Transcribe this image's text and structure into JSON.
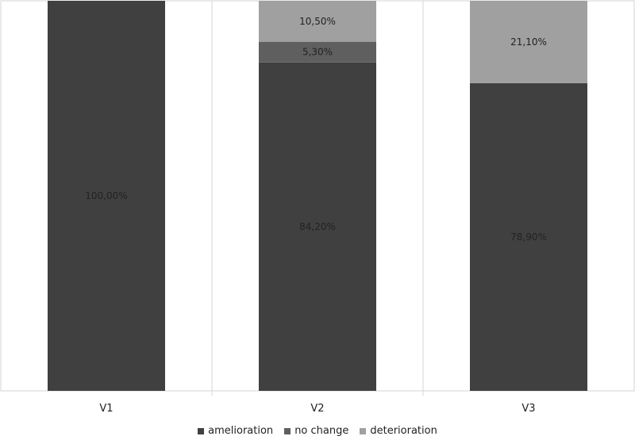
{
  "chart_data": {
    "type": "bar",
    "stacked": true,
    "title": "",
    "xlabel": "",
    "ylabel": "",
    "ylim": [
      0,
      100
    ],
    "grid": false,
    "legend_position": "bottom",
    "categories": [
      "V1",
      "V2",
      "V3"
    ],
    "series": [
      {
        "name": "amelioration",
        "color": "#404040",
        "values": [
          100.0,
          84.2,
          78.9
        ],
        "labels": [
          "100,00%",
          "84,20%",
          "78,90%"
        ]
      },
      {
        "name": "no change",
        "color": "#5f5f5f",
        "values": [
          0,
          5.3,
          0
        ],
        "labels": [
          "",
          "5,30%",
          ""
        ]
      },
      {
        "name": "deterioration",
        "color": "#a0a0a0",
        "values": [
          0,
          10.5,
          21.1
        ],
        "labels": [
          "",
          "10,50%",
          "21,10%"
        ]
      }
    ]
  }
}
